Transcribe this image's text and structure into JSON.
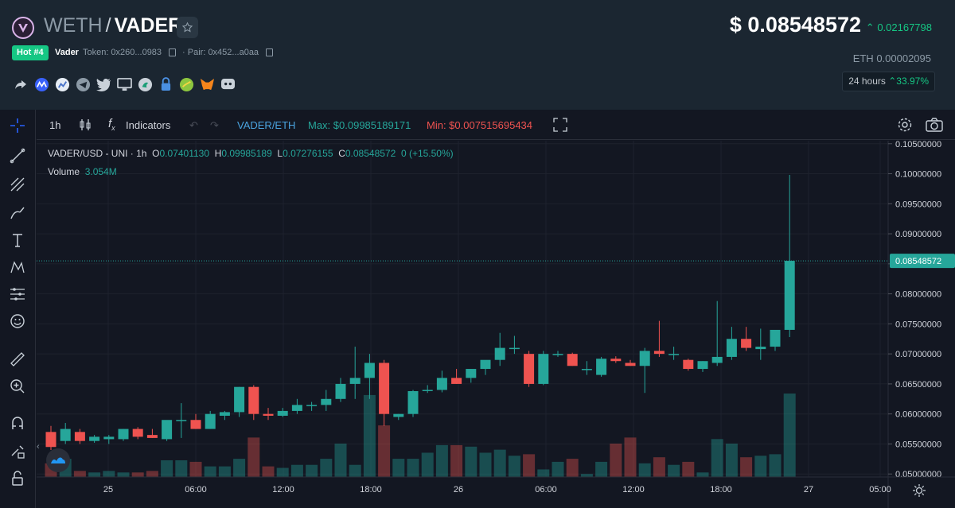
{
  "header": {
    "base": "WETH",
    "separator": "/",
    "quote": "VADER",
    "hot_badge": "Hot #4",
    "token_name": "Vader",
    "token_label": "Token: 0x260...0983",
    "pair_label": "· Pair: 0x452...a0aa",
    "price": "$ 0.08548572",
    "price_change": "0.02167798",
    "eth_label": "ETH",
    "eth_value": "0.00002095",
    "h24_label": "24 hours",
    "h24_change": "33.97%"
  },
  "socials": [
    "share-icon",
    "coinmarketcap-icon",
    "coingecko-icon",
    "telegram-icon",
    "twitter-icon",
    "website-icon",
    "uniswap-icon",
    "lock-icon",
    "pancake-icon",
    "metamask-icon",
    "discord-icon"
  ],
  "toolbar": {
    "interval": "1h",
    "indicators": "Indicators",
    "pair": "VADER/ETH",
    "max": "Max: $0.09985189171",
    "min": "Min: $0.007515695434"
  },
  "legend": {
    "symbol": "VADER/USD - UNI · 1h",
    "o_label": "O",
    "o": "0.07401130",
    "h_label": "H",
    "h": "0.09985189",
    "l_label": "L",
    "l": "0.07276155",
    "c_label": "C",
    "c": "0.08548572",
    "change": "0 (+15.50%)",
    "volume_label": "Volume",
    "volume": "3.054M"
  },
  "colors": {
    "up": "#26a69a",
    "down": "#ef5350",
    "accent": "#16c784"
  },
  "chart_data": {
    "type": "candlestick",
    "title": "VADER/USD - UNI",
    "interval": "1h",
    "y_ticks": [
      "0.10500000",
      "0.10000000",
      "0.09500000",
      "0.09000000",
      "0.08500000",
      "0.08000000",
      "0.07500000",
      "0.07000000",
      "0.06500000",
      "0.06000000",
      "0.05500000",
      "0.05000000"
    ],
    "ylim": [
      0.0495,
      0.1055
    ],
    "current_price_label": "0.08548572",
    "x_ticks": [
      "25",
      "06:00",
      "12:00",
      "18:00",
      "26",
      "06:00",
      "12:00",
      "18:00",
      "27",
      "05:00"
    ],
    "candles": [
      {
        "o": 0.057,
        "h": 0.058,
        "l": 0.054,
        "c": 0.0545
      },
      {
        "o": 0.0555,
        "h": 0.0585,
        "l": 0.055,
        "c": 0.0575
      },
      {
        "o": 0.057,
        "h": 0.0575,
        "l": 0.055,
        "c": 0.0555
      },
      {
        "o": 0.0555,
        "h": 0.0565,
        "l": 0.0552,
        "c": 0.0562
      },
      {
        "o": 0.0558,
        "h": 0.0565,
        "l": 0.055,
        "c": 0.0562
      },
      {
        "o": 0.0558,
        "h": 0.0575,
        "l": 0.0555,
        "c": 0.0575
      },
      {
        "o": 0.0575,
        "h": 0.0578,
        "l": 0.0558,
        "c": 0.0562
      },
      {
        "o": 0.0565,
        "h": 0.0575,
        "l": 0.056,
        "c": 0.056
      },
      {
        "o": 0.0558,
        "h": 0.0585,
        "l": 0.0555,
        "c": 0.059
      },
      {
        "o": 0.059,
        "h": 0.0618,
        "l": 0.056,
        "c": 0.059
      },
      {
        "o": 0.059,
        "h": 0.06,
        "l": 0.0575,
        "c": 0.0575
      },
      {
        "o": 0.0575,
        "h": 0.0605,
        "l": 0.0575,
        "c": 0.06
      },
      {
        "o": 0.0597,
        "h": 0.0605,
        "l": 0.059,
        "c": 0.0603
      },
      {
        "o": 0.0603,
        "h": 0.0645,
        "l": 0.0595,
        "c": 0.0645
      },
      {
        "o": 0.0645,
        "h": 0.0648,
        "l": 0.059,
        "c": 0.06
      },
      {
        "o": 0.06,
        "h": 0.061,
        "l": 0.059,
        "c": 0.0597
      },
      {
        "o": 0.0597,
        "h": 0.061,
        "l": 0.0595,
        "c": 0.0605
      },
      {
        "o": 0.0605,
        "h": 0.0625,
        "l": 0.06,
        "c": 0.0615
      },
      {
        "o": 0.0615,
        "h": 0.062,
        "l": 0.0605,
        "c": 0.0615
      },
      {
        "o": 0.0615,
        "h": 0.064,
        "l": 0.0605,
        "c": 0.0625
      },
      {
        "o": 0.0625,
        "h": 0.066,
        "l": 0.062,
        "c": 0.065
      },
      {
        "o": 0.065,
        "h": 0.0712,
        "l": 0.0625,
        "c": 0.066
      },
      {
        "o": 0.066,
        "h": 0.07,
        "l": 0.0625,
        "c": 0.0685
      },
      {
        "o": 0.0685,
        "h": 0.069,
        "l": 0.058,
        "c": 0.06
      },
      {
        "o": 0.0595,
        "h": 0.06,
        "l": 0.059,
        "c": 0.06
      },
      {
        "o": 0.06,
        "h": 0.064,
        "l": 0.0595,
        "c": 0.0638
      },
      {
        "o": 0.064,
        "h": 0.0648,
        "l": 0.0635,
        "c": 0.064
      },
      {
        "o": 0.064,
        "h": 0.0672,
        "l": 0.0636,
        "c": 0.066
      },
      {
        "o": 0.066,
        "h": 0.0675,
        "l": 0.065,
        "c": 0.065
      },
      {
        "o": 0.066,
        "h": 0.0675,
        "l": 0.0652,
        "c": 0.0675
      },
      {
        "o": 0.0675,
        "h": 0.0688,
        "l": 0.0665,
        "c": 0.069
      },
      {
        "o": 0.069,
        "h": 0.0735,
        "l": 0.068,
        "c": 0.071
      },
      {
        "o": 0.071,
        "h": 0.073,
        "l": 0.07,
        "c": 0.071
      },
      {
        "o": 0.07,
        "h": 0.0705,
        "l": 0.0645,
        "c": 0.065
      },
      {
        "o": 0.065,
        "h": 0.0705,
        "l": 0.0648,
        "c": 0.07
      },
      {
        "o": 0.07,
        "h": 0.0705,
        "l": 0.0695,
        "c": 0.07
      },
      {
        "o": 0.07,
        "h": 0.0702,
        "l": 0.068,
        "c": 0.068
      },
      {
        "o": 0.0675,
        "h": 0.0688,
        "l": 0.0665,
        "c": 0.0675
      },
      {
        "o": 0.0665,
        "h": 0.0695,
        "l": 0.0662,
        "c": 0.0692
      },
      {
        "o": 0.0692,
        "h": 0.0696,
        "l": 0.0685,
        "c": 0.0688
      },
      {
        "o": 0.0685,
        "h": 0.069,
        "l": 0.068,
        "c": 0.068
      },
      {
        "o": 0.068,
        "h": 0.071,
        "l": 0.0635,
        "c": 0.0705
      },
      {
        "o": 0.0705,
        "h": 0.0755,
        "l": 0.0695,
        "c": 0.07
      },
      {
        "o": 0.07,
        "h": 0.0712,
        "l": 0.069,
        "c": 0.07
      },
      {
        "o": 0.069,
        "h": 0.0692,
        "l": 0.0672,
        "c": 0.0675
      },
      {
        "o": 0.0675,
        "h": 0.0688,
        "l": 0.067,
        "c": 0.0688
      },
      {
        "o": 0.0685,
        "h": 0.0788,
        "l": 0.068,
        "c": 0.0695
      },
      {
        "o": 0.0695,
        "h": 0.0745,
        "l": 0.069,
        "c": 0.0725
      },
      {
        "o": 0.0725,
        "h": 0.0745,
        "l": 0.0705,
        "c": 0.071
      },
      {
        "o": 0.0708,
        "h": 0.0742,
        "l": 0.069,
        "c": 0.0712
      },
      {
        "o": 0.0712,
        "h": 0.074,
        "l": 0.0705,
        "c": 0.074
      },
      {
        "o": 0.074,
        "h": 0.0998,
        "l": 0.0728,
        "c": 0.0855
      }
    ],
    "volumes": [
      0.9,
      1.2,
      0.4,
      0.3,
      0.4,
      0.3,
      0.3,
      0.4,
      1.1,
      1.1,
      1.0,
      0.7,
      0.7,
      1.2,
      2.6,
      0.7,
      0.6,
      0.8,
      0.8,
      1.2,
      2.2,
      0.8,
      5.4,
      3.4,
      1.2,
      1.2,
      1.6,
      2.1,
      2.1,
      2.0,
      1.6,
      1.8,
      1.4,
      1.5,
      0.5,
      1.0,
      1.2,
      0.2,
      1.0,
      2.2,
      2.6,
      0.9,
      1.3,
      0.8,
      1.0,
      0.3,
      2.5,
      2.2,
      1.3,
      1.4,
      1.5,
      5.5
    ]
  }
}
